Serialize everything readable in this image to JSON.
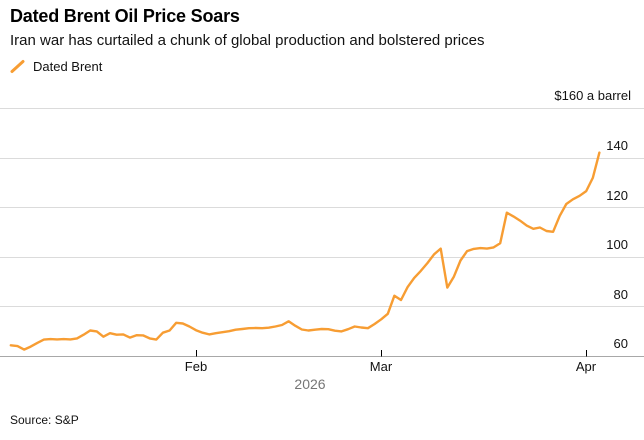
{
  "header": {
    "title": "Dated Brent Oil Price Soars",
    "subtitle": "Iran war has curtailed a chunk of global production and bolstered prices"
  },
  "legend": {
    "label": "Dated Brent"
  },
  "y_axis": {
    "unit_label": "$160 a barrel",
    "ticks": [
      "140",
      "120",
      "100",
      "80",
      "60"
    ]
  },
  "x_axis": {
    "months": [
      "Feb",
      "Mar",
      "Apr"
    ],
    "year": "2026"
  },
  "source": "Source: S&P",
  "colors": {
    "line": "#F79D33",
    "grid": "#DBDBDB",
    "axis_line": "#A8A8A8",
    "tick": "#000000",
    "text": "#121212",
    "muted": "#767676"
  },
  "chart_data": {
    "type": "line",
    "title": "Dated Brent Oil Price Soars",
    "subtitle": "Iran war has curtailed a chunk of global production and bolstered prices",
    "ylabel": "$ a barrel",
    "ylim": [
      60,
      160
    ],
    "gridlines": [
      160,
      140,
      120,
      100,
      80,
      60
    ],
    "x_tick_labels": [
      "Feb",
      "Mar",
      "Apr"
    ],
    "x_tick_day_of_year": [
      31,
      59,
      90
    ],
    "legend_position": "top-left",
    "grid": true,
    "series": [
      {
        "name": "Dated Brent",
        "start_date": "2026-01-04",
        "end_date": "2026-04-03",
        "frequency": "daily",
        "values": [
          64.3,
          64.0,
          62.6,
          63.8,
          65.3,
          66.6,
          66.8,
          66.7,
          66.8,
          66.7,
          67.1,
          68.6,
          70.3,
          69.9,
          67.8,
          69.2,
          68.6,
          68.7,
          67.4,
          68.4,
          68.3,
          67.1,
          66.6,
          69.4,
          70.3,
          73.4,
          73.1,
          71.9,
          70.4,
          69.4,
          68.7,
          69.2,
          69.6,
          70.0,
          70.6,
          70.9,
          71.2,
          71.3,
          71.2,
          71.4,
          71.9,
          72.5,
          74.0,
          72.2,
          70.7,
          70.3,
          70.6,
          70.9,
          70.8,
          70.2,
          69.9,
          70.8,
          71.9,
          71.5,
          71.2,
          72.9,
          74.8,
          77.0,
          84.3,
          82.6,
          87.8,
          91.5,
          94.3,
          97.5,
          101.0,
          103.3,
          87.6,
          92.0,
          98.5,
          102.3,
          103.2,
          103.5,
          103.3,
          103.8,
          105.5,
          117.8,
          116.3,
          114.6,
          112.6,
          111.3,
          111.8,
          110.4,
          110.1,
          116.5,
          121.3,
          123.2,
          124.6,
          126.5,
          131.8,
          142.0
        ]
      }
    ]
  }
}
